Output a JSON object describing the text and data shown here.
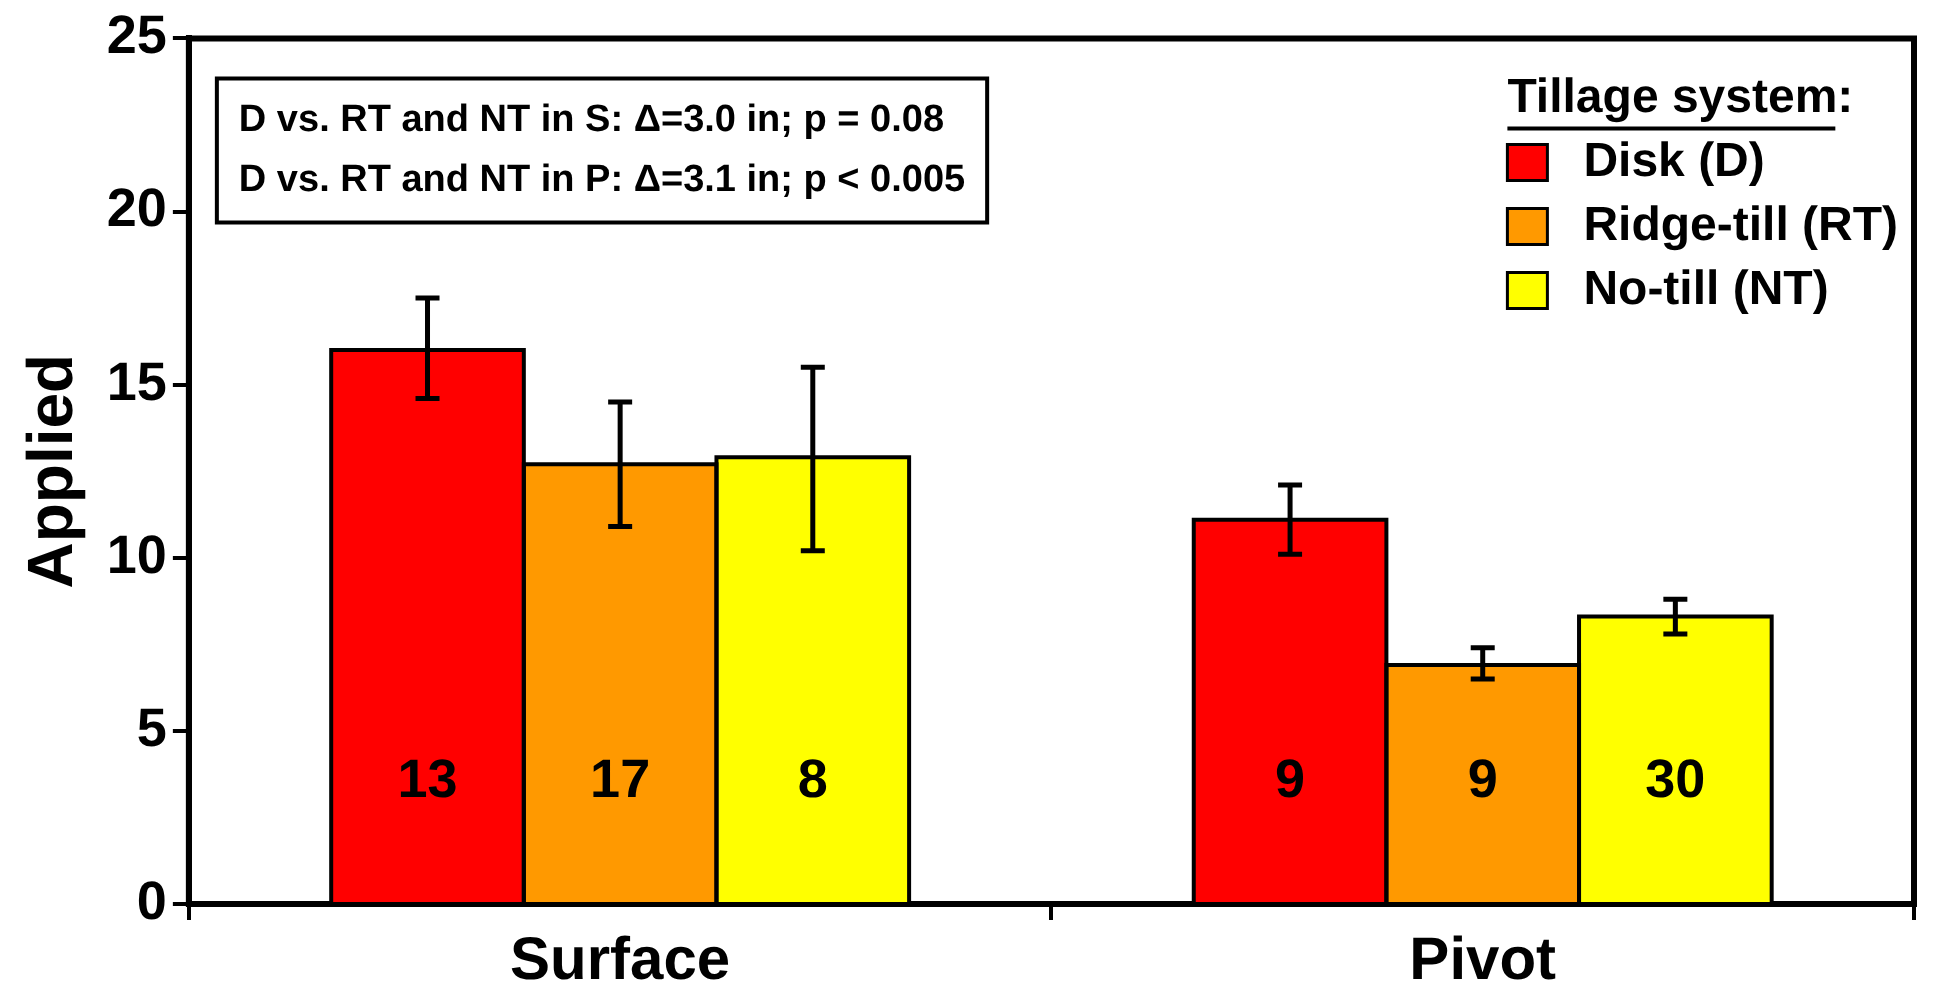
{
  "chart_data": {
    "type": "bar",
    "ylabel": "Applied",
    "legend_title": "Tillage system:",
    "categories": [
      "Surface",
      "Pivot"
    ],
    "series": [
      {
        "name": "Disk (D)",
        "color": "#ff0000",
        "values": [
          16.0,
          11.1
        ],
        "errors": [
          [
            14.6,
            17.5
          ],
          [
            10.1,
            12.1
          ]
        ]
      },
      {
        "name": "Ridge-till (RT)",
        "color": "#ff9900",
        "values": [
          12.7,
          6.9
        ],
        "errors": [
          [
            10.9,
            14.5
          ],
          [
            6.5,
            7.4
          ]
        ]
      },
      {
        "name": "No-till (NT)",
        "color": "#ffff00",
        "values": [
          12.9,
          8.3
        ],
        "errors": [
          [
            10.2,
            15.5
          ],
          [
            7.8,
            8.8
          ]
        ]
      }
    ],
    "ylim": [
      0,
      25
    ],
    "yticks": [
      0,
      5,
      10,
      15,
      20,
      25
    ],
    "grid": false,
    "legend": "top right",
    "annotations": [
      "D vs. RT and NT in S: Δ=3.0 in; p = 0.08",
      "D vs. RT and NT in P: Δ=3.1 in; p < 0.005",
      "13",
      "17",
      "8",
      "9",
      "9",
      "30"
    ]
  }
}
